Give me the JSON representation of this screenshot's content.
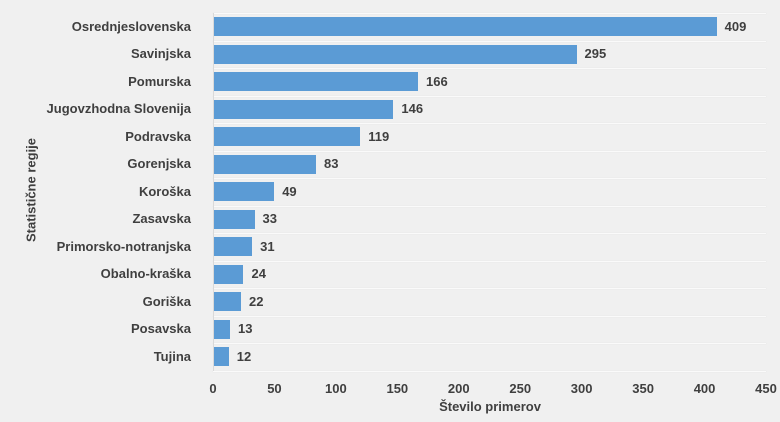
{
  "chart_data": {
    "type": "bar",
    "orientation": "horizontal",
    "categories": [
      "Osrednjeslovenska",
      "Savinjska",
      "Pomurska",
      "Jugovzhodna Slovenija",
      "Podravska",
      "Gorenjska",
      "Koroška",
      "Zasavska",
      "Primorsko-notranjska",
      "Obalno-kraška",
      "Goriška",
      "Posavska",
      "Tujina"
    ],
    "values": [
      409,
      295,
      166,
      146,
      119,
      83,
      49,
      33,
      31,
      24,
      22,
      13,
      12
    ],
    "title": "",
    "xlabel": "Število primerov",
    "ylabel": "Statistične regije",
    "xlim": [
      0,
      450
    ],
    "xticks": [
      0,
      50,
      100,
      150,
      200,
      250,
      300,
      350,
      400,
      450
    ],
    "grid": "category-separators",
    "legend": "none",
    "data_labels": true,
    "colors": {
      "bar": "#5b9bd5",
      "background": "#f0f0f0",
      "text": "#3f3f3f",
      "gridline": "#fafafa",
      "axis_line": "#d9d9d9"
    }
  }
}
